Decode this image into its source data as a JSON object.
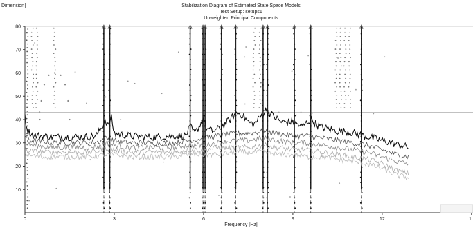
{
  "chart_data": {
    "type": "line",
    "title_lines": [
      "Stabilization Diagram of Estimated State Space Models",
      "Test Setup: setups1",
      "Unweighted Principal Components"
    ],
    "ylabel_fragment": "Dimension]",
    "xlabel": "Frequency [Hz]",
    "xlim": [
      0,
      15
    ],
    "ylim": [
      0,
      80
    ],
    "x_ticks": [
      "0",
      "3",
      "6",
      "9",
      "12",
      "1"
    ],
    "y_ticks": [
      "80",
      "70",
      "60",
      "50",
      "40",
      "30",
      "20",
      "10"
    ],
    "threshold_line": 43,
    "modes": [
      {
        "freq": 2.65,
        "dashed": true
      },
      {
        "freq": 2.85,
        "dashed": true
      },
      {
        "freq": 5.55,
        "dashed": true
      },
      {
        "freq": 5.98,
        "dashed": true
      },
      {
        "freq": 6.05,
        "dashed": true
      },
      {
        "freq": 6.6,
        "dashed": true
      },
      {
        "freq": 7.08,
        "dashed": true
      },
      {
        "freq": 8.0,
        "dashed": true
      },
      {
        "freq": 8.15,
        "dashed": false
      },
      {
        "freq": 9.05,
        "dashed": true
      },
      {
        "freq": 9.6,
        "dashed": true
      },
      {
        "freq": 11.3,
        "dashed": true
      }
    ],
    "series": [
      {
        "color": "#111111",
        "x": [
          0,
          0.1,
          0.3,
          0.6,
          1.0,
          1.5,
          2.0,
          2.4,
          2.6,
          2.7,
          2.8,
          2.9,
          3.0,
          3.5,
          4.0,
          4.5,
          5.0,
          5.4,
          5.55,
          5.7,
          5.9,
          6.0,
          6.1,
          6.3,
          6.5,
          6.7,
          6.9,
          7.1,
          7.3,
          7.5,
          7.7,
          7.9,
          8.1,
          8.3,
          8.6,
          9.0,
          9.3,
          9.6,
          9.9,
          10.2,
          10.5,
          10.8,
          11.1,
          11.4,
          11.7,
          12.0,
          12.3,
          12.6,
          12.9
        ],
        "y": [
          41,
          35,
          33,
          33,
          32.5,
          32.5,
          32.5,
          33,
          37,
          40,
          37,
          41,
          34,
          33,
          32.5,
          32.5,
          33,
          33,
          37,
          34,
          38,
          41,
          36,
          35,
          36,
          38,
          40,
          43,
          42,
          39,
          38,
          41,
          44,
          42,
          39,
          39,
          37,
          40,
          37,
          36,
          35,
          35,
          34,
          33,
          32,
          31,
          30,
          29,
          28
        ]
      },
      {
        "color": "#555555",
        "x": [
          0,
          0.2,
          0.6,
          1.0,
          1.5,
          2.0,
          2.5,
          2.7,
          3.0,
          3.5,
          4.0,
          4.5,
          5.0,
          5.5,
          6.0,
          6.5,
          7.0,
          7.5,
          8.0,
          8.5,
          9.0,
          9.5,
          10.0,
          10.5,
          11.0,
          11.5,
          12.0,
          12.5,
          12.9
        ],
        "y": [
          33,
          31,
          30.5,
          30,
          30,
          30,
          30.5,
          32,
          31,
          30,
          30,
          30,
          30,
          31,
          32,
          33,
          34,
          34,
          35,
          34,
          33,
          33,
          32,
          31,
          30,
          29,
          27,
          25,
          24
        ]
      },
      {
        "color": "#888888",
        "x": [
          0,
          0.2,
          0.6,
          1.0,
          1.5,
          2.0,
          2.5,
          2.7,
          3.0,
          3.5,
          4.0,
          4.5,
          5.0,
          5.5,
          6.0,
          6.5,
          7.0,
          7.5,
          8.0,
          8.5,
          9.0,
          9.5,
          10.0,
          10.5,
          11.0,
          11.5,
          12.0,
          12.5,
          12.9
        ],
        "y": [
          30,
          29,
          28.5,
          28,
          28,
          28,
          28.5,
          30,
          29,
          28,
          28,
          28,
          28,
          29,
          29,
          30,
          31,
          31,
          32,
          31,
          30,
          30,
          29,
          28,
          27,
          26,
          24,
          22,
          21
        ]
      },
      {
        "color": "#aaaaaa",
        "x": [
          0,
          0.2,
          0.6,
          1.0,
          1.5,
          2.0,
          2.5,
          2.7,
          3.0,
          3.5,
          4.0,
          4.5,
          5.0,
          5.5,
          6.0,
          6.5,
          7.0,
          7.5,
          8.0,
          8.5,
          9.0,
          9.5,
          10.0,
          10.5,
          11.0,
          11.5,
          12.0,
          12.5,
          12.9
        ],
        "y": [
          27,
          26.5,
          26,
          26,
          26,
          26,
          26.5,
          28,
          27,
          26,
          26,
          26,
          26,
          27,
          27,
          28,
          28,
          28,
          29,
          28,
          27,
          27,
          26,
          25,
          24,
          23,
          21,
          18,
          17
        ]
      },
      {
        "color": "#bbbbbb",
        "x": [
          0,
          0.2,
          0.6,
          1.0,
          1.5,
          2.0,
          2.5,
          3.0,
          3.5,
          4.0,
          4.5,
          5.0,
          5.5,
          6.0,
          6.5,
          7.0,
          7.5,
          8.0,
          8.5,
          9.0,
          9.5,
          10.0,
          10.5,
          11.0,
          11.5,
          12.0,
          12.5,
          12.9
        ],
        "y": [
          25,
          24.5,
          24,
          24,
          24,
          24,
          24.5,
          25,
          24,
          24,
          24,
          24,
          25,
          25,
          25,
          26,
          26,
          26,
          25,
          25,
          24,
          24,
          23,
          22,
          21,
          19,
          16,
          15
        ]
      }
    ],
    "side_curves": [
      {
        "x": [
          0.5,
          0.55,
          0.65,
          0.8,
          1.0,
          1.2,
          1.35,
          1.45,
          1.5
        ],
        "y": [
          40,
          48,
          55,
          59,
          60,
          59,
          55,
          48,
          40
        ]
      }
    ]
  }
}
